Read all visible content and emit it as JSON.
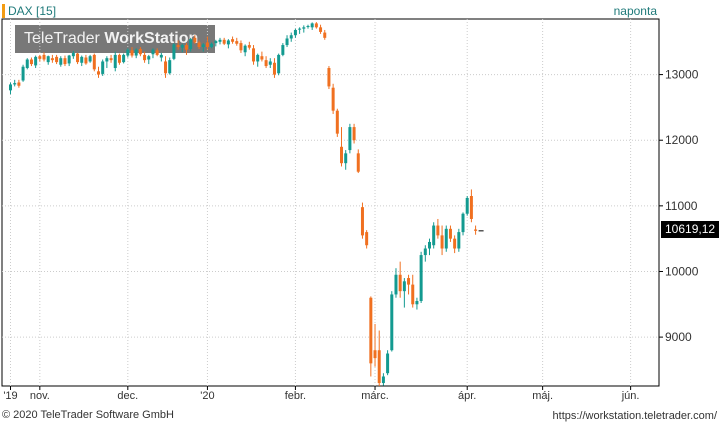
{
  "header": {
    "instrument": "DAX [15]",
    "interval": "naponta"
  },
  "logo": {
    "part1": "TeleTrader ",
    "part2": "WorkStation"
  },
  "footer": {
    "copyright": "© 2020 TeleTrader Software GmbH",
    "url": "https://workstation.teletrader.com/"
  },
  "last_value": "10619,12",
  "colors": {
    "up": "#139a90",
    "down": "#f07020",
    "accent": "#f39c12",
    "grid": "#cccccc",
    "title": "#1f7a7a"
  },
  "chart_data": {
    "type": "candlestick",
    "title": "DAX [15]",
    "interval": "naponta",
    "ylim": [
      8255,
      13847
    ],
    "y_ticks": [
      9000,
      10000,
      11000,
      12000,
      13000
    ],
    "y_tick_labels": [
      "9000",
      "10000",
      "11000",
      "12000",
      "13000"
    ],
    "x_labels": [
      {
        "label": "'19",
        "bar": 0
      },
      {
        "label": "nov.",
        "bar": 7
      },
      {
        "label": "dec.",
        "bar": 28
      },
      {
        "label": "'20",
        "bar": 47
      },
      {
        "label": "febr.",
        "bar": 68
      },
      {
        "label": "márc.",
        "bar": 87
      },
      {
        "label": "ápr.",
        "bar": 109
      },
      {
        "label": "máj.",
        "bar": 127
      },
      {
        "label": "jún.",
        "bar": 148
      }
    ],
    "last": 10619.12,
    "candles": [
      [
        12760,
        12880,
        12700,
        12850
      ],
      [
        12850,
        12920,
        12820,
        12870
      ],
      [
        12880,
        12920,
        12800,
        12830
      ],
      [
        12910,
        13150,
        12890,
        13120
      ],
      [
        13100,
        13250,
        13080,
        13230
      ],
      [
        13230,
        13260,
        13130,
        13160
      ],
      [
        13140,
        13290,
        13100,
        13270
      ],
      [
        13280,
        13300,
        13200,
        13240
      ],
      [
        13300,
        13340,
        13200,
        13230
      ],
      [
        13190,
        13290,
        13150,
        13280
      ],
      [
        13250,
        13300,
        13180,
        13220
      ],
      [
        13270,
        13300,
        13160,
        13190
      ],
      [
        13150,
        13280,
        13120,
        13250
      ],
      [
        13250,
        13290,
        13130,
        13160
      ],
      [
        13170,
        13300,
        13130,
        13290
      ],
      [
        13280,
        13360,
        13240,
        13330
      ],
      [
        13320,
        13330,
        13160,
        13190
      ],
      [
        13180,
        13290,
        13130,
        13270
      ],
      [
        13260,
        13300,
        13150,
        13170
      ],
      [
        13200,
        13300,
        13180,
        13280
      ],
      [
        13300,
        13320,
        13050,
        13080
      ],
      [
        13050,
        13120,
        12950,
        13000
      ],
      [
        13010,
        13230,
        12980,
        13200
      ],
      [
        13200,
        13280,
        13100,
        13250
      ],
      [
        13250,
        13300,
        13180,
        13220
      ],
      [
        13100,
        13350,
        13050,
        13300
      ],
      [
        13300,
        13320,
        13150,
        13180
      ],
      [
        13190,
        13320,
        13170,
        13300
      ],
      [
        13290,
        13400,
        13260,
        13380
      ],
      [
        13370,
        13420,
        13260,
        13290
      ],
      [
        13290,
        13400,
        13250,
        13380
      ],
      [
        13390,
        13420,
        13280,
        13310
      ],
      [
        13300,
        13350,
        13180,
        13220
      ],
      [
        13230,
        13300,
        13160,
        13280
      ],
      [
        13310,
        13400,
        13250,
        13380
      ],
      [
        13370,
        13400,
        13280,
        13300
      ],
      [
        13260,
        13330,
        13200,
        13300
      ],
      [
        13200,
        13280,
        12950,
        13020
      ],
      [
        13020,
        13260,
        13000,
        13220
      ],
      [
        13240,
        13480,
        13220,
        13460
      ],
      [
        13450,
        13520,
        13380,
        13420
      ],
      [
        13410,
        13470,
        13340,
        13450
      ],
      [
        13450,
        13480,
        13300,
        13380
      ],
      [
        13390,
        13560,
        13350,
        13540
      ],
      [
        13560,
        13600,
        13470,
        13490
      ],
      [
        13490,
        13520,
        13390,
        13420
      ],
      [
        13420,
        13480,
        13350,
        13460
      ],
      [
        13490,
        13580,
        13380,
        13420
      ],
      [
        13420,
        13490,
        13400,
        13470
      ],
      [
        13480,
        13530,
        13430,
        13510
      ],
      [
        13500,
        13560,
        13460,
        13530
      ],
      [
        13530,
        13560,
        13450,
        13470
      ],
      [
        13460,
        13540,
        13400,
        13520
      ],
      [
        13540,
        13580,
        13470,
        13500
      ],
      [
        13510,
        13560,
        13440,
        13470
      ],
      [
        13480,
        13520,
        13330,
        13370
      ],
      [
        13340,
        13460,
        13280,
        13440
      ],
      [
        13450,
        13500,
        13380,
        13410
      ],
      [
        13400,
        13450,
        13150,
        13200
      ],
      [
        13200,
        13320,
        13120,
        13300
      ],
      [
        13280,
        13350,
        13200,
        13230
      ],
      [
        13220,
        13280,
        13100,
        13130
      ],
      [
        13150,
        13250,
        13100,
        13200
      ],
      [
        13180,
        13250,
        12950,
        13000
      ],
      [
        13020,
        13320,
        12990,
        13300
      ],
      [
        13300,
        13480,
        13280,
        13450
      ],
      [
        13450,
        13600,
        13420,
        13550
      ],
      [
        13550,
        13640,
        13500,
        13600
      ],
      [
        13600,
        13700,
        13560,
        13680
      ],
      [
        13690,
        13720,
        13620,
        13700
      ],
      [
        13700,
        13750,
        13640,
        13720
      ],
      [
        13730,
        13760,
        13700,
        13740
      ],
      [
        13720,
        13795,
        13680,
        13780
      ],
      [
        13780,
        13800,
        13700,
        13720
      ],
      [
        13720,
        13760,
        13620,
        13650
      ],
      [
        13640,
        13680,
        13530,
        13560
      ],
      [
        13100,
        13130,
        12780,
        12820
      ],
      [
        12800,
        12860,
        12400,
        12450
      ],
      [
        12450,
        12480,
        12050,
        12100
      ],
      [
        11900,
        12200,
        11600,
        11650
      ],
      [
        11650,
        11850,
        11550,
        11800
      ],
      [
        11850,
        12250,
        11800,
        12200
      ],
      [
        12200,
        12250,
        11950,
        12000
      ],
      [
        11800,
        11860,
        11500,
        11520
      ],
      [
        10980,
        11050,
        10500,
        10550
      ],
      [
        10600,
        10630,
        10350,
        10400
      ],
      [
        9600,
        9620,
        8400,
        8600
      ],
      [
        8800,
        9200,
        8550,
        8680
      ],
      [
        8800,
        9100,
        8255,
        8300
      ],
      [
        8300,
        8450,
        8260,
        8400
      ],
      [
        8450,
        8800,
        8420,
        8750
      ],
      [
        8800,
        9700,
        8780,
        9650
      ],
      [
        9650,
        10050,
        9600,
        9950
      ],
      [
        9950,
        10150,
        9600,
        9700
      ],
      [
        9700,
        9900,
        9450,
        9850
      ],
      [
        9900,
        9950,
        9650,
        9800
      ],
      [
        9800,
        9950,
        9450,
        9500
      ],
      [
        9500,
        9600,
        9420,
        9550
      ],
      [
        9550,
        10300,
        9520,
        10250
      ],
      [
        10250,
        10400,
        10150,
        10350
      ],
      [
        10350,
        10500,
        10250,
        10450
      ],
      [
        10400,
        10750,
        10350,
        10700
      ],
      [
        10700,
        10800,
        10500,
        10550
      ],
      [
        10550,
        10700,
        10250,
        10350
      ],
      [
        10350,
        10700,
        10300,
        10650
      ],
      [
        10650,
        10700,
        10450,
        10500
      ],
      [
        10500,
        10550,
        10280,
        10350
      ],
      [
        10350,
        10650,
        10300,
        10600
      ],
      [
        10600,
        10900,
        10550,
        10880
      ],
      [
        10880,
        11150,
        10850,
        11120
      ],
      [
        11150,
        11250,
        10750,
        10800
      ],
      [
        10640,
        10700,
        10560,
        10619
      ]
    ]
  }
}
